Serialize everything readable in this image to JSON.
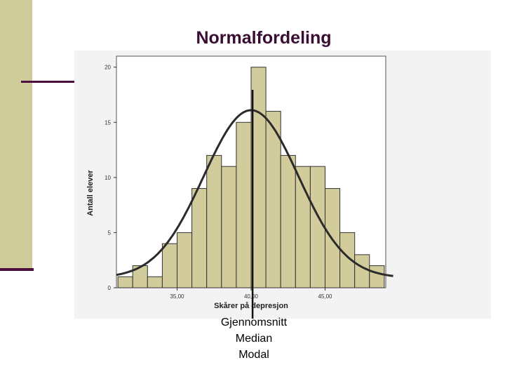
{
  "slide": {
    "title": "Normalfordeling",
    "captions": [
      "Gjennomsnitt",
      "Median",
      "Modal"
    ]
  },
  "colors": {
    "accent": "#4a0f3c",
    "band": "#cfcb9a",
    "bar_fill": "#d2cc9c",
    "curve": "#2b2b2b"
  },
  "chart_data": {
    "type": "bar",
    "title": "",
    "xlabel": "Skårer på depresjon",
    "ylabel": "Antall elever",
    "x_ticks": [
      "35,00",
      "40,00",
      "45,00"
    ],
    "x_tick_values": [
      35,
      40,
      45
    ],
    "y_ticks": [
      "0",
      "5",
      "10",
      "15",
      "20"
    ],
    "y_tick_values": [
      0,
      5,
      10,
      15,
      20
    ],
    "ylim": [
      0,
      21
    ],
    "xlim": [
      30.9,
      49.1
    ],
    "bin_width": 1,
    "bin_starts": [
      31,
      32,
      33,
      34,
      35,
      36,
      37,
      38,
      39,
      40,
      41,
      42,
      43,
      44,
      45,
      46,
      47,
      48
    ],
    "values": [
      1,
      2,
      1,
      4,
      5,
      9,
      12,
      11,
      15,
      20,
      16,
      12,
      11,
      11,
      9,
      5,
      3,
      2
    ],
    "normal_curve": {
      "mean": 40,
      "sd": 3.2,
      "peak": 15.2
    },
    "center_line_x": 40.1,
    "grid": false
  }
}
